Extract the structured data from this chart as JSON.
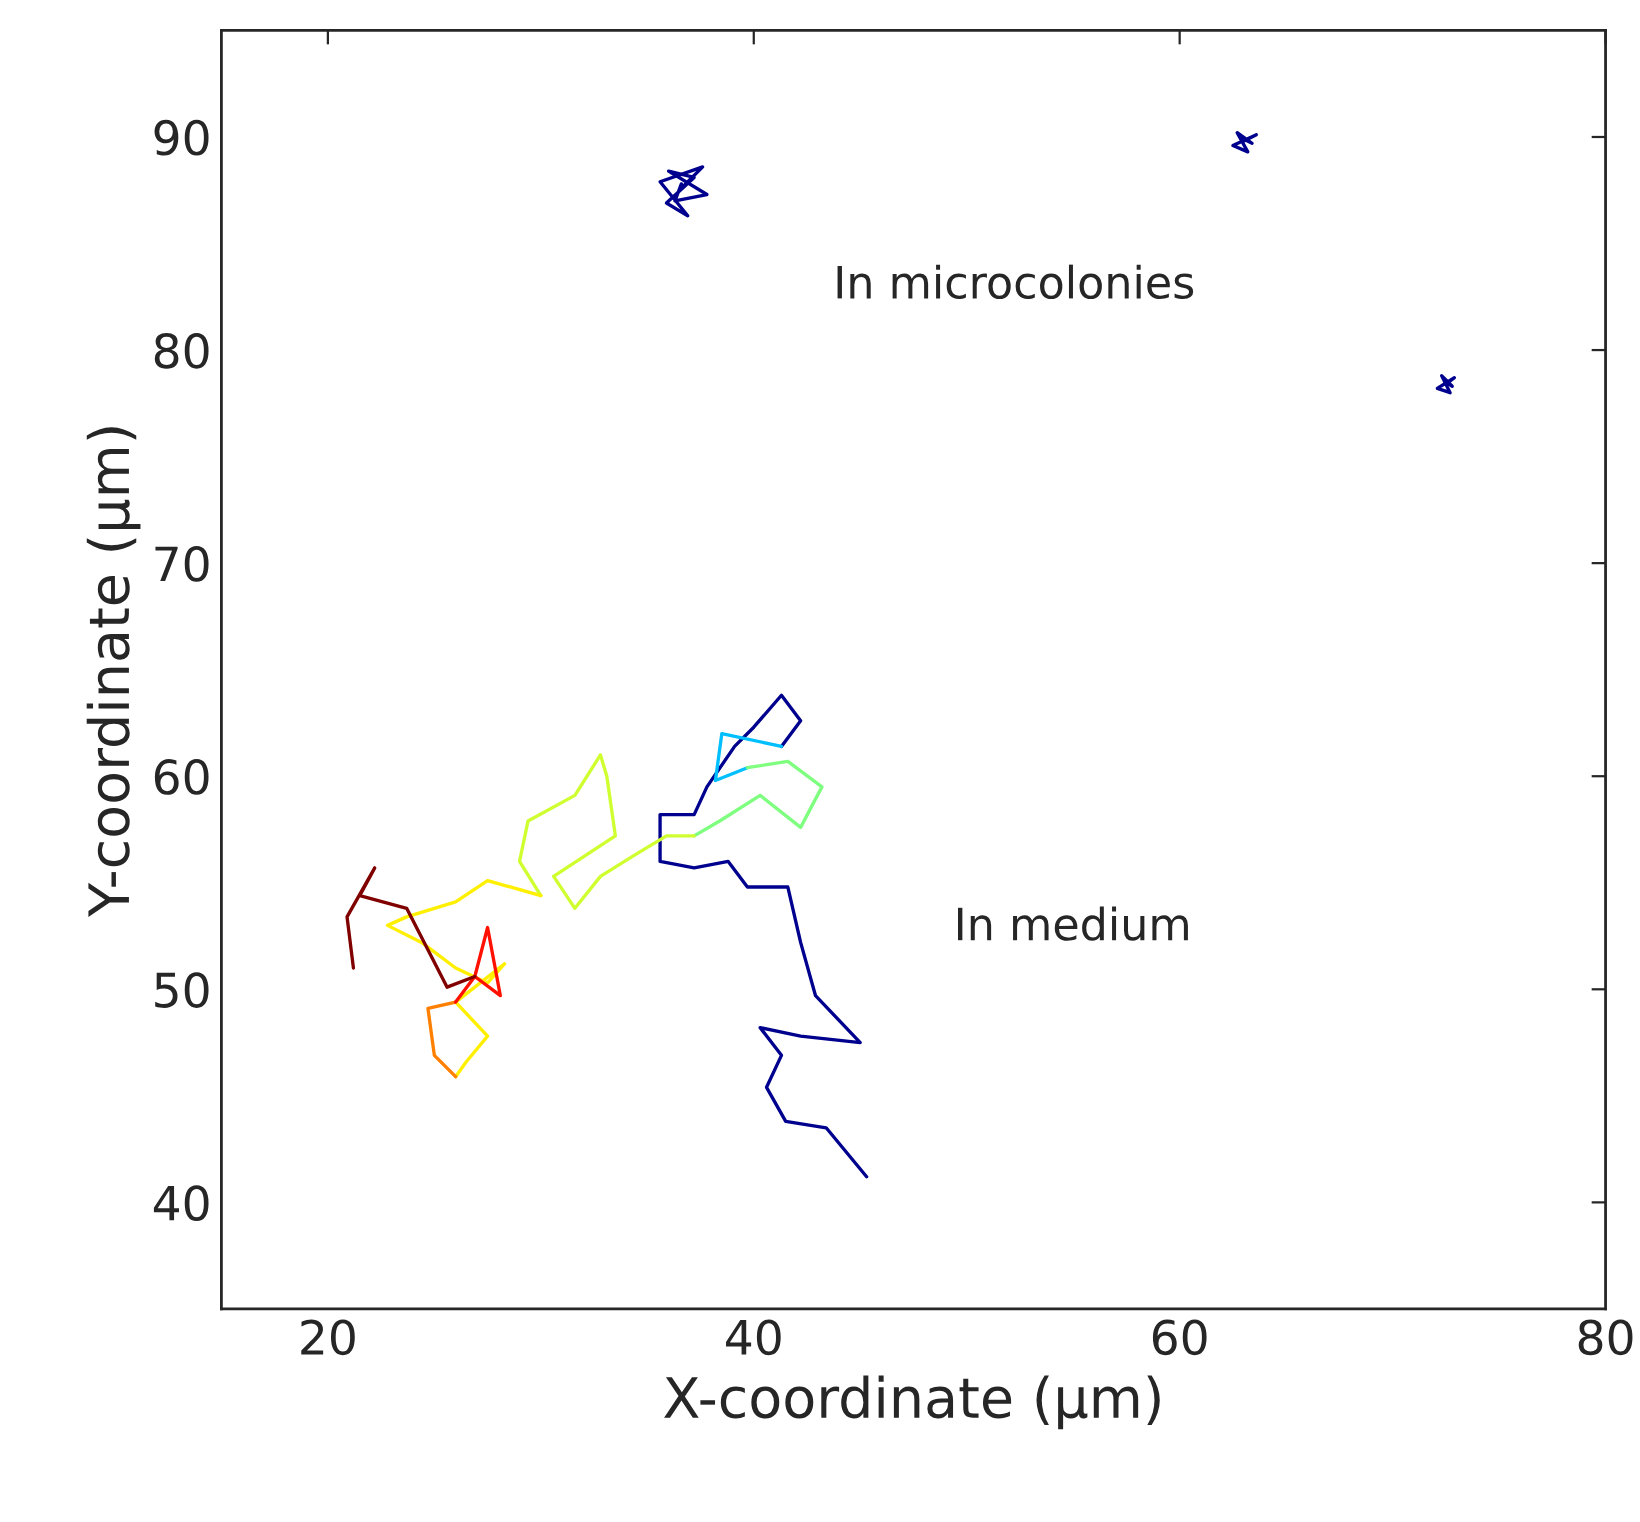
{
  "chart_data": {
    "type": "line",
    "xlabel": "X-coordinate (μm)",
    "ylabel": "Y-coordinate (μm)",
    "xlim": [
      15,
      80
    ],
    "ylim": [
      35,
      95
    ],
    "xticks": [
      20,
      40,
      60,
      80
    ],
    "yticks": [
      40,
      50,
      60,
      70,
      80,
      90
    ],
    "grid": false,
    "series": [
      {
        "color": "#00008f",
        "x": [
          45.3,
          43.4,
          41.5,
          40.6,
          41.3,
          40.3,
          42.2,
          45.0,
          42.9,
          42.2,
          41.6,
          39.7,
          38.8,
          37.2,
          35.6,
          35.6,
          37.2,
          37.8,
          39.1,
          40.0,
          41.3,
          42.2,
          41.3
        ],
        "values": [
          41.2,
          43.5,
          43.8,
          45.4,
          46.9,
          48.2,
          47.8,
          47.5,
          49.7,
          52.2,
          54.8,
          54.8,
          56.0,
          55.7,
          56.0,
          58.2,
          58.2,
          59.5,
          61.4,
          62.3,
          63.8,
          62.6,
          61.4
        ]
      },
      {
        "color": "#00bfff",
        "x": [
          41.3,
          38.5,
          38.2,
          39.7
        ],
        "values": [
          61.4,
          62.0,
          59.8,
          60.4
        ]
      },
      {
        "color": "#7fff7f",
        "x": [
          39.7,
          41.6,
          43.2,
          42.2,
          40.3,
          38.4,
          37.2
        ],
        "values": [
          60.4,
          60.7,
          59.5,
          57.6,
          59.1,
          57.9,
          57.2
        ]
      },
      {
        "color": "#cfff2f",
        "x": [
          37.2,
          35.9,
          34.4,
          32.8,
          31.6,
          30.6,
          33.5,
          33.1,
          32.8,
          31.6,
          29.4,
          29.0,
          30.0
        ],
        "values": [
          57.2,
          57.2,
          56.3,
          55.3,
          53.8,
          55.3,
          57.2,
          60.0,
          61.0,
          59.1,
          57.9,
          56.0,
          54.4
        ]
      },
      {
        "color": "#ffef00",
        "x": [
          30.0,
          27.5,
          26.0,
          23.7,
          22.8,
          24.4,
          26.0,
          27.5,
          28.3,
          26.0,
          27.5,
          26.5,
          26.0
        ],
        "values": [
          54.4,
          55.1,
          54.1,
          53.4,
          53.0,
          52.2,
          51.0,
          50.3,
          51.2,
          49.4,
          47.8,
          46.6,
          45.9
        ]
      },
      {
        "color": "#ff8000",
        "x": [
          26.0,
          25.0,
          24.7,
          26.0
        ],
        "values": [
          45.9,
          46.9,
          49.1,
          49.4
        ]
      },
      {
        "color": "#ff1000",
        "x": [
          26.0,
          26.9,
          27.5,
          28.1,
          26.9
        ],
        "values": [
          49.4,
          50.6,
          52.9,
          49.7,
          50.6
        ]
      },
      {
        "color": "#800000",
        "x": [
          26.9,
          25.6,
          23.7,
          21.5,
          22.2,
          20.9,
          21.2
        ],
        "values": [
          50.6,
          50.1,
          53.8,
          54.4,
          55.7,
          53.4,
          51.0
        ]
      },
      {
        "color": "#00008f",
        "x": [
          36.5,
          37.6,
          35.6,
          36.9,
          35.9,
          37.2,
          36.0,
          37.8,
          36.3,
          36.6
        ],
        "values": [
          87.5,
          88.6,
          87.9,
          86.3,
          86.9,
          88.1,
          88.4,
          87.3,
          87.0,
          87.8
        ]
      },
      {
        "color": "#00008f",
        "x": [
          63.0,
          63.6,
          62.5,
          63.2,
          62.7,
          63.4,
          63.0
        ],
        "values": [
          89.8,
          90.1,
          89.6,
          89.3,
          90.2,
          89.7,
          89.9
        ]
      },
      {
        "color": "#00008f",
        "x": [
          72.5,
          72.9,
          72.1,
          72.7,
          72.3,
          72.8,
          72.5
        ],
        "values": [
          78.4,
          78.7,
          78.2,
          78.0,
          78.8,
          78.3,
          78.5
        ]
      }
    ],
    "annotations": [
      "In microcolonies",
      "In medium"
    ]
  }
}
